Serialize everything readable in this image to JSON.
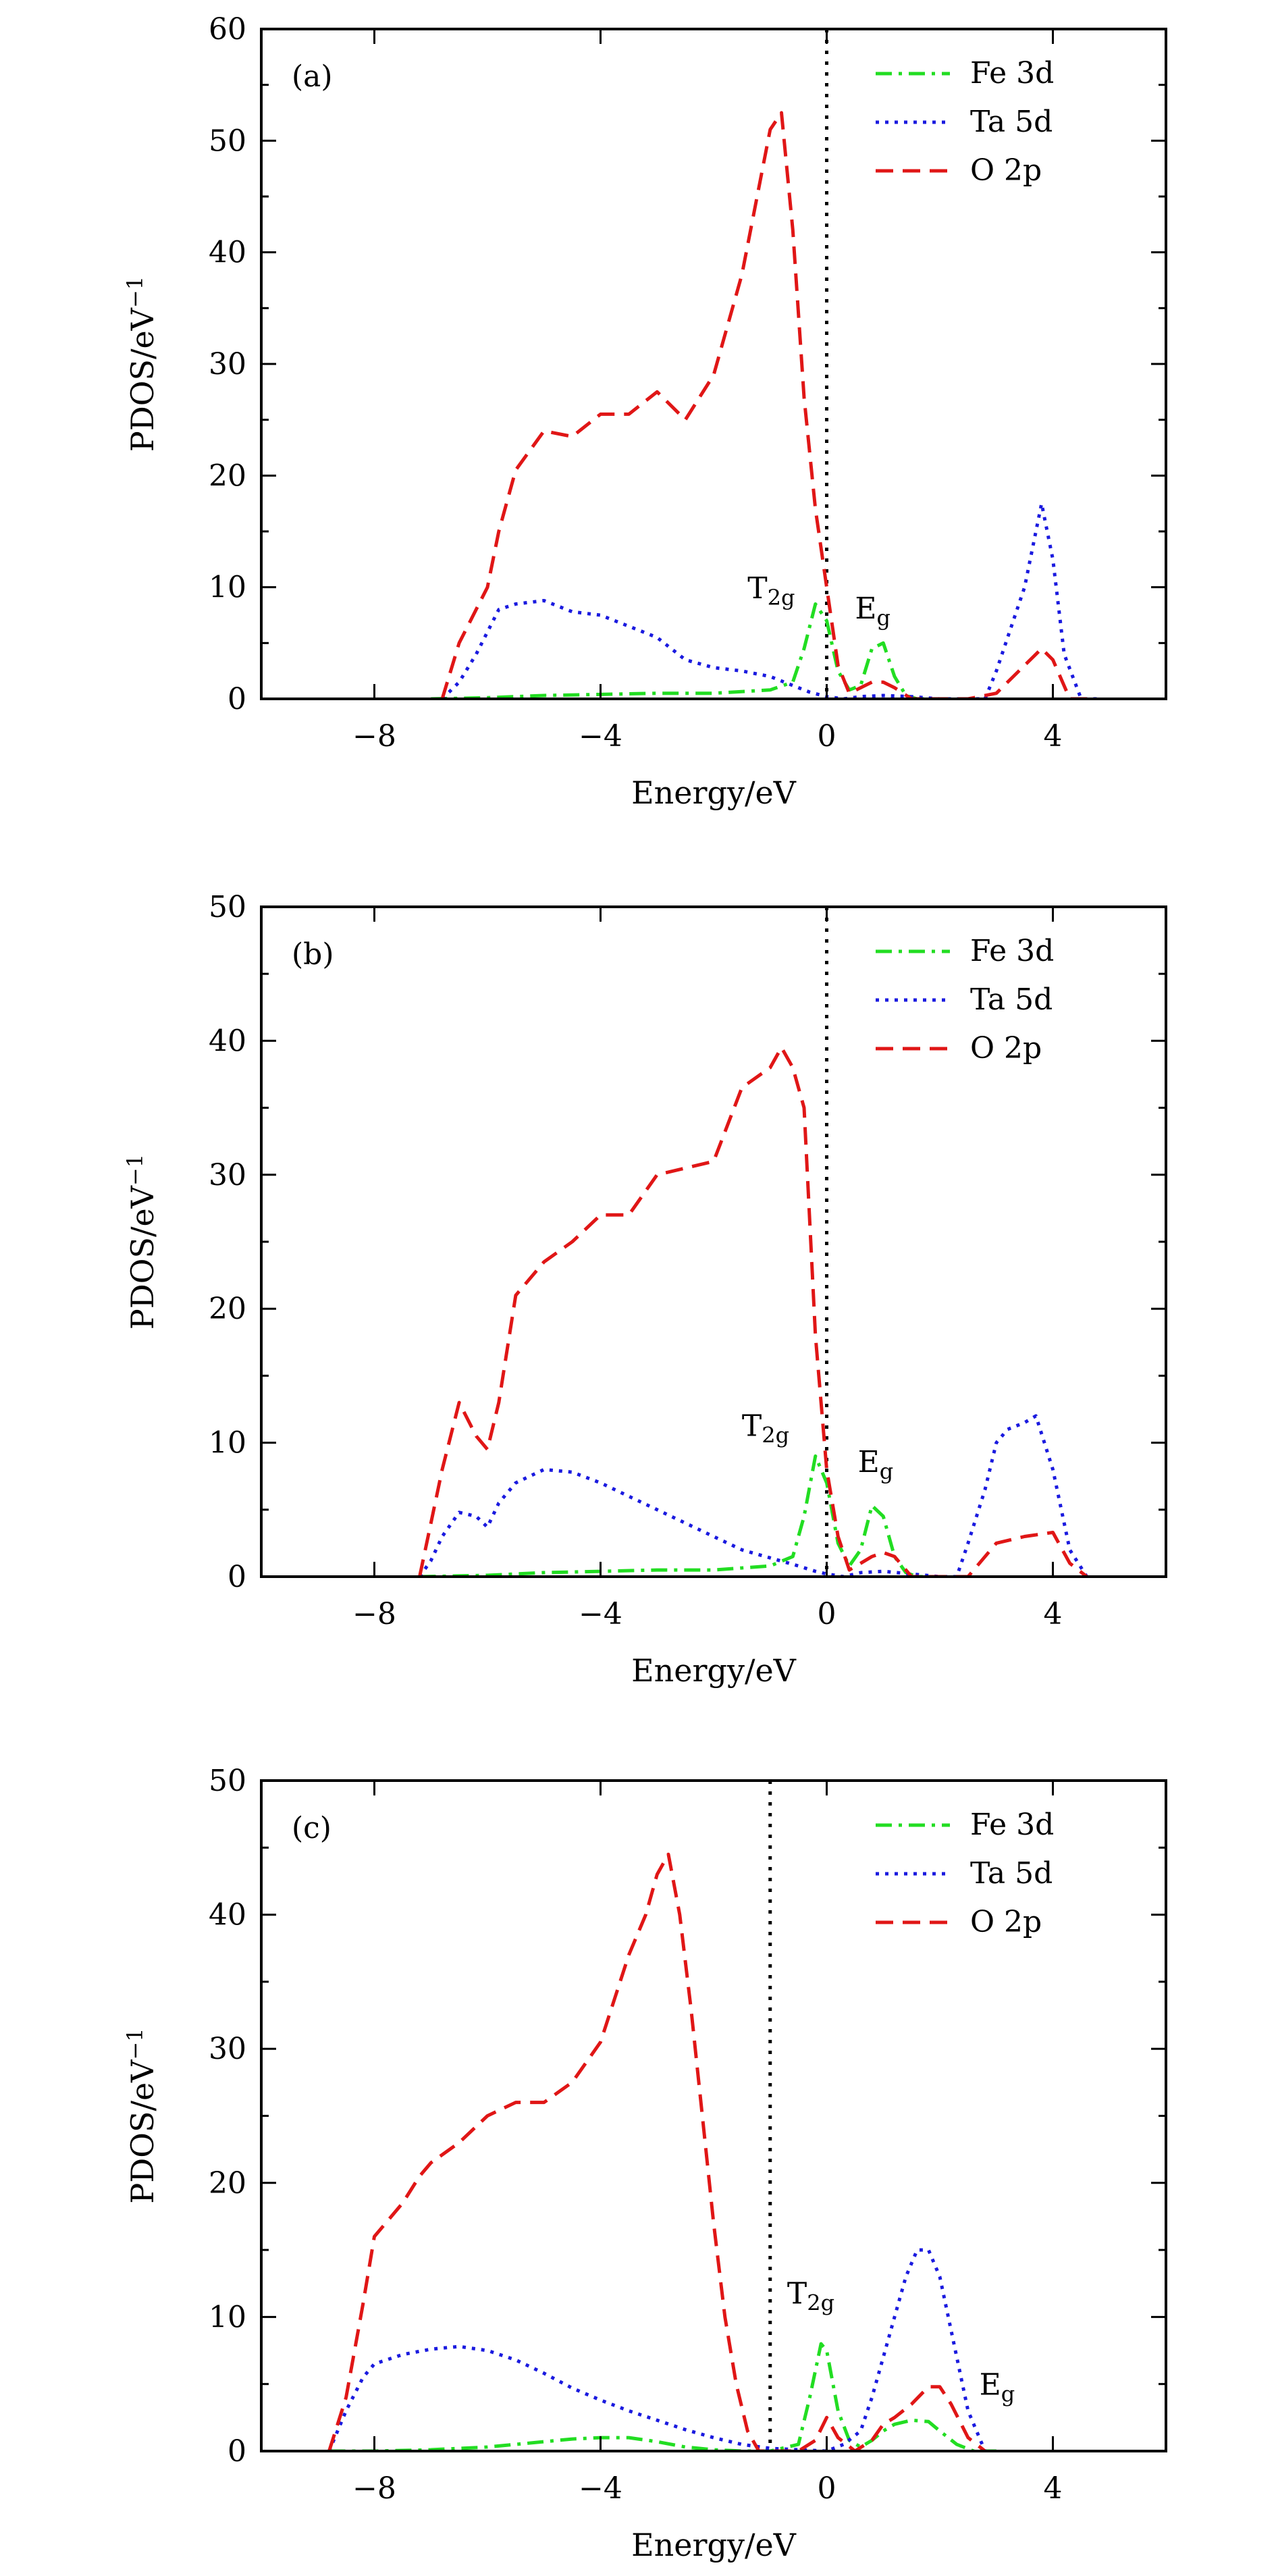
{
  "colors": {
    "fe": "#22dd22",
    "ta": "#1a1adf",
    "o": "#e01616",
    "axis": "#000000",
    "fermi": "#000000"
  },
  "chart_data": [
    {
      "type": "line",
      "panel_label": "(a)",
      "xlabel": "Energy/eV",
      "ylabel": "PDOS/eV",
      "ylabel_sup": "−1",
      "xlim": [
        -10,
        6
      ],
      "ylim": [
        0,
        60
      ],
      "xticks": [
        -8,
        -4,
        0,
        4
      ],
      "xtick_labels": [
        "−8",
        "−4",
        "0",
        "4"
      ],
      "yticks": [
        0,
        10,
        20,
        30,
        40,
        50,
        60
      ],
      "ytick_labels": [
        "0",
        "10",
        "20",
        "30",
        "40",
        "50",
        "60"
      ],
      "fermi_level": 0,
      "legend_placement": "top-right",
      "annotations": [
        {
          "base": "T",
          "sub": "2g",
          "x": -1.4,
          "y": 9.0
        },
        {
          "base": "E",
          "sub": "g",
          "x": 0.5,
          "y": 7.2
        }
      ],
      "series": [
        {
          "name": "Fe 3d",
          "color_key": "fe",
          "style": "dashdot",
          "x": [
            -7.0,
            -6.0,
            -5.0,
            -4.0,
            -3.0,
            -2.0,
            -1.0,
            -0.6,
            -0.4,
            -0.2,
            0.0,
            0.2,
            0.4,
            0.6,
            0.8,
            1.0,
            1.2,
            1.4,
            1.6,
            2.0
          ],
          "y": [
            0,
            0.1,
            0.3,
            0.4,
            0.5,
            0.5,
            0.8,
            1.5,
            4.5,
            8.5,
            7.0,
            2.5,
            0.8,
            1.2,
            4.5,
            5.0,
            2.0,
            0.3,
            0,
            0
          ]
        },
        {
          "name": "Ta 5d",
          "color_key": "ta",
          "style": "dotted",
          "x": [
            -6.8,
            -6.5,
            -6.2,
            -5.8,
            -5.5,
            -5.0,
            -4.5,
            -4.0,
            -3.5,
            -3.0,
            -2.5,
            -2.0,
            -1.5,
            -1.0,
            -0.6,
            -0.3,
            0.0,
            0.3,
            0.6,
            1.0,
            1.5,
            2.0,
            2.5,
            2.8,
            3.0,
            3.2,
            3.5,
            3.8,
            4.0,
            4.2,
            4.5,
            4.8
          ],
          "y": [
            0,
            1.5,
            4,
            8,
            8.5,
            8.8,
            7.8,
            7.5,
            6.5,
            5.5,
            3.5,
            2.8,
            2.5,
            2.0,
            1.2,
            0.6,
            0.2,
            0,
            0.2,
            0.3,
            0.2,
            0,
            0,
            0,
            2.5,
            5.5,
            10,
            17.5,
            12.5,
            4,
            0,
            0
          ]
        },
        {
          "name": "O 2p",
          "color_key": "o",
          "style": "dashed",
          "x": [
            -6.8,
            -6.5,
            -6.0,
            -5.8,
            -5.5,
            -5.0,
            -4.5,
            -4.0,
            -3.5,
            -3.0,
            -2.5,
            -2.0,
            -1.5,
            -1.0,
            -0.8,
            -0.6,
            -0.4,
            -0.2,
            0.0,
            0.2,
            0.4,
            0.6,
            0.8,
            1.0,
            1.2,
            1.5,
            2.0,
            2.5,
            3.0,
            3.5,
            3.8,
            4.0,
            4.3,
            4.6
          ],
          "y": [
            0,
            5,
            10,
            15,
            20.5,
            24,
            23.5,
            25.5,
            25.5,
            27.5,
            25,
            29,
            38,
            51,
            52.5,
            42,
            27,
            17,
            10,
            3,
            0.5,
            1,
            1.5,
            1.5,
            1,
            0,
            0,
            0,
            0.5,
            3,
            4.5,
            3.5,
            0,
            0
          ]
        }
      ]
    },
    {
      "type": "line",
      "panel_label": "(b)",
      "xlabel": "Energy/eV",
      "ylabel": "PDOS/eV",
      "ylabel_sup": "−1",
      "xlim": [
        -10,
        6
      ],
      "ylim": [
        0,
        50
      ],
      "xticks": [
        -8,
        -4,
        0,
        4
      ],
      "xtick_labels": [
        "−8",
        "−4",
        "0",
        "4"
      ],
      "yticks": [
        0,
        10,
        20,
        30,
        40,
        50
      ],
      "ytick_labels": [
        "0",
        "10",
        "20",
        "30",
        "40",
        "50"
      ],
      "fermi_level": 0,
      "legend_placement": "top-right",
      "annotations": [
        {
          "base": "T",
          "sub": "2g",
          "x": -1.5,
          "y": 10.5
        },
        {
          "base": "E",
          "sub": "g",
          "x": 0.55,
          "y": 7.8
        }
      ],
      "series": [
        {
          "name": "Fe 3d",
          "color_key": "fe",
          "style": "dashdot",
          "x": [
            -7.2,
            -6.0,
            -5.0,
            -4.0,
            -3.0,
            -2.0,
            -1.0,
            -0.6,
            -0.4,
            -0.2,
            0.0,
            0.2,
            0.4,
            0.6,
            0.8,
            1.0,
            1.2,
            1.4,
            1.6,
            2.0
          ],
          "y": [
            0,
            0.1,
            0.3,
            0.4,
            0.5,
            0.5,
            0.8,
            1.5,
            4.5,
            9.0,
            7.0,
            2.5,
            0.8,
            2.0,
            5.3,
            4.5,
            1.5,
            0.3,
            0,
            0
          ]
        },
        {
          "name": "Ta 5d",
          "color_key": "ta",
          "style": "dotted",
          "x": [
            -7.2,
            -7.0,
            -6.8,
            -6.5,
            -6.2,
            -6.0,
            -5.8,
            -5.5,
            -5.0,
            -4.5,
            -4.0,
            -3.5,
            -3.0,
            -2.5,
            -2.0,
            -1.5,
            -1.0,
            -0.5,
            -0.2,
            0.0,
            0.3,
            0.6,
            1.0,
            1.5,
            2.0,
            2.3,
            2.5,
            2.8,
            3.0,
            3.2,
            3.5,
            3.7,
            4.0,
            4.3,
            4.6
          ],
          "y": [
            0,
            1.2,
            3,
            4.8,
            4.5,
            3.7,
            5.5,
            7,
            8,
            7.8,
            7,
            6,
            5,
            4,
            3,
            2,
            1.4,
            0.8,
            0.4,
            0.2,
            0,
            0.3,
            0.4,
            0.2,
            0,
            0,
            2.5,
            6.5,
            10,
            11,
            11.5,
            12,
            8,
            2,
            0
          ]
        },
        {
          "name": "O 2p",
          "color_key": "o",
          "style": "dashed",
          "x": [
            -7.2,
            -7.0,
            -6.8,
            -6.5,
            -6.2,
            -6.0,
            -5.8,
            -5.5,
            -5.0,
            -4.5,
            -4.0,
            -3.5,
            -3.0,
            -2.5,
            -2.0,
            -1.5,
            -1.0,
            -0.8,
            -0.6,
            -0.4,
            -0.2,
            0.0,
            0.2,
            0.4,
            0.6,
            0.8,
            1.0,
            1.2,
            1.5,
            2.0,
            2.5,
            3.0,
            3.5,
            4.0,
            4.3,
            4.6
          ],
          "y": [
            0,
            4,
            8,
            13,
            10.5,
            9.5,
            13,
            21,
            23.5,
            25,
            27,
            27,
            30,
            30.5,
            31,
            36.5,
            38,
            39.5,
            38,
            35,
            18,
            8,
            3,
            0.5,
            1,
            1.5,
            1.8,
            1.5,
            0,
            0,
            0,
            2.5,
            3,
            3.3,
            1,
            0
          ]
        }
      ]
    },
    {
      "type": "line",
      "panel_label": "(c)",
      "xlabel": "Energy/eV",
      "ylabel": "PDOS/eV",
      "ylabel_sup": "−1",
      "xlim": [
        -10,
        6
      ],
      "ylim": [
        0,
        50
      ],
      "xticks": [
        -8,
        -4,
        0,
        4
      ],
      "xtick_labels": [
        "−8",
        "−4",
        "0",
        "4"
      ],
      "yticks": [
        0,
        10,
        20,
        30,
        40,
        50
      ],
      "ytick_labels": [
        "0",
        "10",
        "20",
        "30",
        "40",
        "50"
      ],
      "fermi_level": -1,
      "legend_placement": "top-right",
      "annotations": [
        {
          "base": "T",
          "sub": "2g",
          "x": -0.7,
          "y": 11.0
        },
        {
          "base": "E",
          "sub": "g",
          "x": 2.7,
          "y": 4.2
        }
      ],
      "series": [
        {
          "name": "Fe 3d",
          "color_key": "fe",
          "style": "dashdot",
          "x": [
            -8.8,
            -8.0,
            -7.0,
            -6.0,
            -5.0,
            -4.5,
            -4.0,
            -3.5,
            -3.0,
            -2.5,
            -2.0,
            -1.5,
            -1.0,
            -0.5,
            -0.3,
            -0.1,
            0.0,
            0.2,
            0.4,
            0.6,
            0.8,
            1.0,
            1.2,
            1.5,
            1.8,
            2.0,
            2.3,
            2.6,
            3.0
          ],
          "y": [
            0,
            0,
            0.1,
            0.3,
            0.7,
            0.9,
            1.0,
            1.0,
            0.7,
            0.3,
            0.1,
            0,
            0,
            0.5,
            4,
            8,
            7.5,
            3,
            0.8,
            0.3,
            0.8,
            1.5,
            2,
            2.3,
            2.2,
            1.5,
            0.5,
            0,
            0
          ]
        },
        {
          "name": "Ta 5d",
          "color_key": "ta",
          "style": "dotted",
          "x": [
            -8.8,
            -8.5,
            -8.2,
            -8.0,
            -7.5,
            -7.0,
            -6.5,
            -6.0,
            -5.5,
            -5.0,
            -4.5,
            -4.0,
            -3.5,
            -3.0,
            -2.5,
            -2.0,
            -1.5,
            -1.0,
            -0.5,
            0.0,
            0.3,
            0.6,
            0.8,
            1.0,
            1.2,
            1.4,
            1.6,
            1.8,
            2.0,
            2.2,
            2.5,
            2.8
          ],
          "y": [
            0,
            3,
            5.5,
            6.5,
            7.2,
            7.6,
            7.8,
            7.5,
            6.8,
            5.8,
            4.7,
            3.8,
            3.0,
            2.3,
            1.6,
            1.0,
            0.5,
            0.2,
            0.1,
            0,
            0.5,
            1.5,
            4,
            7,
            10,
            13,
            15,
            15,
            13,
            9,
            3,
            0
          ]
        },
        {
          "name": "O 2p",
          "color_key": "o",
          "style": "dashed",
          "x": [
            -8.8,
            -8.5,
            -8.2,
            -8.0,
            -7.8,
            -7.5,
            -7.2,
            -7.0,
            -6.5,
            -6.0,
            -5.5,
            -5.0,
            -4.5,
            -4.0,
            -3.5,
            -3.2,
            -3.0,
            -2.8,
            -2.6,
            -2.4,
            -2.2,
            -2.0,
            -1.8,
            -1.6,
            -1.4,
            -1.2,
            -1.0,
            -0.8,
            -0.5,
            -0.2,
            0.0,
            0.2,
            0.5,
            0.8,
            1.0,
            1.2,
            1.5,
            1.8,
            2.0,
            2.2,
            2.5,
            2.8
          ],
          "y": [
            0,
            4,
            11,
            16,
            17,
            18.5,
            20.5,
            21.5,
            23,
            25,
            26,
            26,
            27.5,
            30.5,
            37,
            40,
            43,
            44.5,
            40,
            33,
            25,
            17,
            10,
            5,
            1.5,
            0,
            0,
            0,
            0,
            0.8,
            2.5,
            1,
            0,
            0.8,
            2,
            2.5,
            3.5,
            4.8,
            4.8,
            3.5,
            1,
            0
          ]
        }
      ]
    }
  ]
}
